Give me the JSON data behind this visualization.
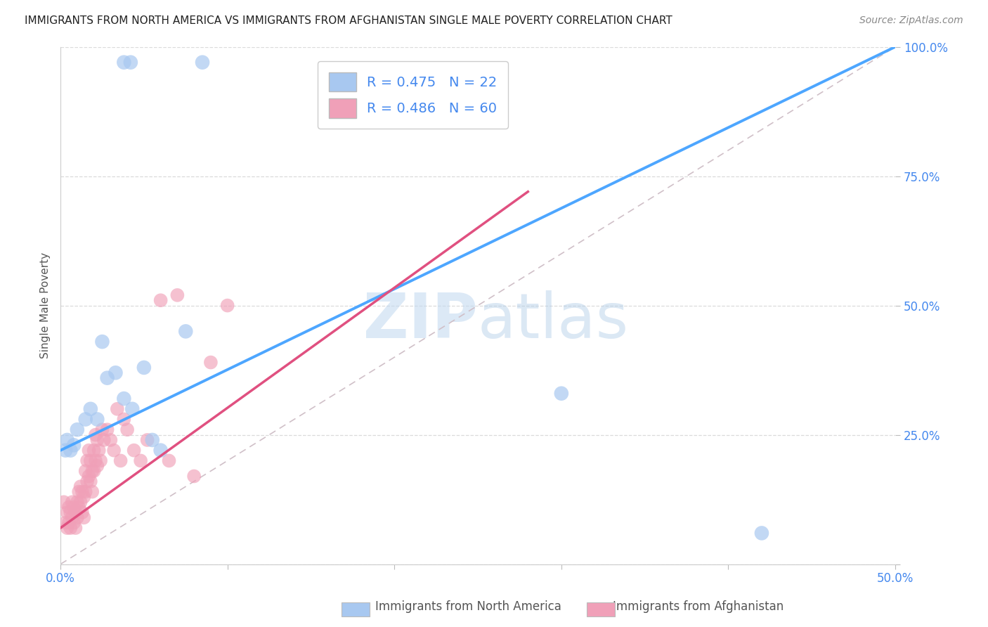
{
  "title": "IMMIGRANTS FROM NORTH AMERICA VS IMMIGRANTS FROM AFGHANISTAN SINGLE MALE POVERTY CORRELATION CHART",
  "source": "Source: ZipAtlas.com",
  "ylabel": "Single Male Poverty",
  "xlim": [
    0,
    0.5
  ],
  "ylim": [
    0,
    1.0
  ],
  "xticks": [
    0.0,
    0.1,
    0.2,
    0.3,
    0.4,
    0.5
  ],
  "xtick_labels": [
    "0.0%",
    "",
    "",
    "",
    "",
    "50.0%"
  ],
  "yticks": [
    0.0,
    0.25,
    0.5,
    0.75,
    1.0
  ],
  "ytick_labels": [
    "",
    "25.0%",
    "50.0%",
    "75.0%",
    "100.0%"
  ],
  "legend_blue_R": "R = 0.475",
  "legend_blue_N": "N = 22",
  "legend_pink_R": "R = 0.486",
  "legend_pink_N": "N = 60",
  "watermark_zip": "ZIP",
  "watermark_atlas": "atlas",
  "blue_color": "#a8c8f0",
  "pink_color": "#f0a0b8",
  "blue_line_color": "#4da6ff",
  "pink_line_color": "#e05080",
  "diag_line_color": "#d0c0c8",
  "background_color": "#ffffff",
  "grid_color": "#d8d8d8",
  "blue_line_x0": 0.0,
  "blue_line_y0": 0.22,
  "blue_line_x1": 0.5,
  "blue_line_y1": 1.0,
  "pink_line_x0": 0.0,
  "pink_line_y0": 0.07,
  "pink_line_x1": 0.28,
  "pink_line_y1": 0.72,
  "blue_scatter_x": [
    0.025,
    0.038,
    0.042,
    0.085,
    0.003,
    0.004,
    0.006,
    0.008,
    0.01,
    0.015,
    0.018,
    0.022,
    0.028,
    0.033,
    0.038,
    0.043,
    0.05,
    0.055,
    0.06,
    0.075,
    0.3,
    0.42
  ],
  "blue_scatter_y": [
    0.43,
    0.97,
    0.97,
    0.97,
    0.22,
    0.24,
    0.22,
    0.23,
    0.26,
    0.28,
    0.3,
    0.28,
    0.36,
    0.37,
    0.32,
    0.3,
    0.38,
    0.24,
    0.22,
    0.45,
    0.33,
    0.06
  ],
  "pink_scatter_x": [
    0.002,
    0.003,
    0.004,
    0.004,
    0.005,
    0.005,
    0.006,
    0.006,
    0.007,
    0.007,
    0.008,
    0.008,
    0.009,
    0.009,
    0.01,
    0.01,
    0.011,
    0.011,
    0.012,
    0.012,
    0.013,
    0.013,
    0.014,
    0.014,
    0.015,
    0.015,
    0.016,
    0.016,
    0.017,
    0.017,
    0.018,
    0.018,
    0.019,
    0.019,
    0.02,
    0.02,
    0.021,
    0.021,
    0.022,
    0.022,
    0.023,
    0.024,
    0.025,
    0.026,
    0.028,
    0.03,
    0.032,
    0.034,
    0.036,
    0.038,
    0.04,
    0.044,
    0.048,
    0.052,
    0.06,
    0.065,
    0.07,
    0.08,
    0.09,
    0.1
  ],
  "pink_scatter_y": [
    0.12,
    0.08,
    0.1,
    0.07,
    0.11,
    0.08,
    0.1,
    0.07,
    0.12,
    0.09,
    0.11,
    0.08,
    0.1,
    0.07,
    0.12,
    0.09,
    0.14,
    0.11,
    0.15,
    0.12,
    0.14,
    0.1,
    0.13,
    0.09,
    0.18,
    0.14,
    0.2,
    0.16,
    0.22,
    0.17,
    0.2,
    0.16,
    0.18,
    0.14,
    0.22,
    0.18,
    0.25,
    0.2,
    0.24,
    0.19,
    0.22,
    0.2,
    0.26,
    0.24,
    0.26,
    0.24,
    0.22,
    0.3,
    0.2,
    0.28,
    0.26,
    0.22,
    0.2,
    0.24,
    0.51,
    0.2,
    0.52,
    0.17,
    0.39,
    0.5
  ]
}
